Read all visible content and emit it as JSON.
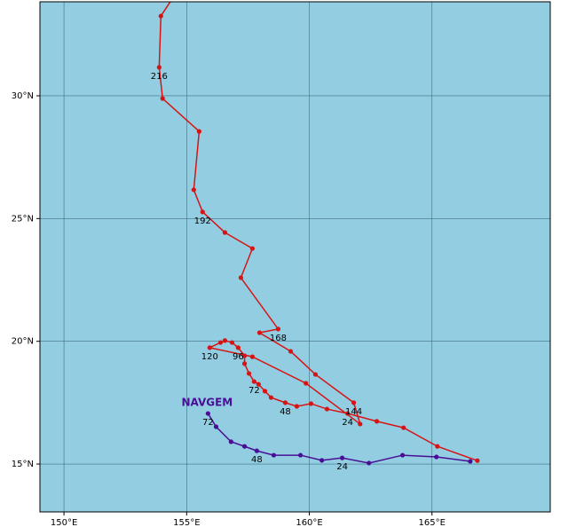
{
  "chart_data": {
    "type": "track",
    "xlim": [
      149.02,
      169.82
    ],
    "ylim": [
      13.05,
      33.83
    ],
    "xticks": [
      {
        "value": 150,
        "label": "150°E"
      },
      {
        "value": 155,
        "label": "155°E"
      },
      {
        "value": 160,
        "label": "160°E"
      },
      {
        "value": 165,
        "label": "165°E"
      }
    ],
    "yticks": [
      {
        "value": 15,
        "label": "15°N"
      },
      {
        "value": 20,
        "label": "20°N"
      },
      {
        "value": 25,
        "label": "25°N"
      },
      {
        "value": 30,
        "label": "30°N"
      }
    ],
    "grid": true,
    "background": "#92cde2",
    "series": [
      {
        "color": "#d71414",
        "x": [
          166.85,
          165.22,
          163.84,
          162.75,
          161.56,
          160.72,
          160.07,
          159.49,
          159.02,
          158.44,
          158.19,
          157.93,
          157.75,
          157.54,
          157.36,
          157.36,
          157.1,
          156.85,
          156.56,
          156.38,
          155.94,
          157.68,
          159.86,
          162.07,
          161.81,
          160.25,
          159.24,
          157.97,
          158.73,
          157.21,
          157.68,
          156.56,
          155.65,
          155.29,
          155.51,
          154.02,
          153.88,
          153.95,
          154.38
        ],
        "y": [
          15.14,
          15.72,
          16.48,
          16.74,
          17.06,
          17.24,
          17.46,
          17.35,
          17.5,
          17.71,
          17.97,
          18.25,
          18.36,
          18.69,
          19.09,
          19.41,
          19.74,
          19.95,
          20.03,
          19.95,
          19.74,
          19.37,
          18.29,
          16.63,
          17.5,
          18.65,
          19.59,
          20.35,
          20.5,
          22.59,
          23.78,
          24.43,
          25.27,
          26.17,
          28.55,
          29.89,
          31.16,
          33.25,
          33.9
        ],
        "point_labels": [
          null,
          null,
          null,
          null,
          24,
          null,
          null,
          null,
          48,
          null,
          null,
          null,
          72,
          null,
          null,
          null,
          96,
          null,
          null,
          null,
          120,
          null,
          null,
          null,
          144,
          null,
          null,
          null,
          168,
          null,
          null,
          null,
          192,
          null,
          null,
          null,
          216,
          null,
          null
        ]
      },
      {
        "name": "NAVGEM",
        "color": "#4a0e96",
        "x": [
          166.56,
          165.18,
          163.8,
          162.43,
          161.34,
          160.51,
          159.64,
          158.55,
          157.86,
          157.36,
          156.81,
          156.2,
          155.87
        ],
        "y": [
          15.11,
          15.29,
          15.36,
          15.04,
          15.25,
          15.15,
          15.36,
          15.36,
          15.54,
          15.72,
          15.91,
          16.52,
          17.06
        ],
        "point_labels": [
          null,
          null,
          null,
          null,
          24,
          null,
          null,
          null,
          48,
          null,
          null,
          null,
          72
        ]
      }
    ]
  }
}
